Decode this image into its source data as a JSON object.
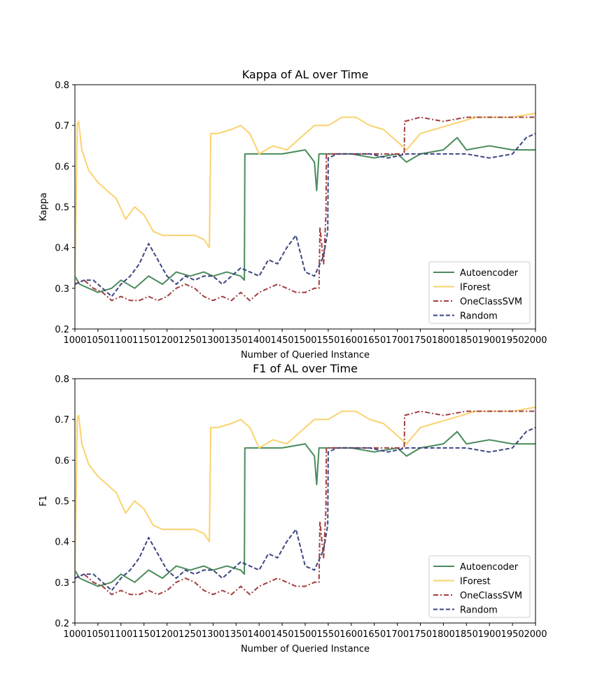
{
  "chart_data": [
    {
      "type": "line",
      "title": "Kappa of AL over Time",
      "xlabel": "Number of Queried Instance",
      "ylabel": "Kappa",
      "xlim": [
        1000,
        2000
      ],
      "ylim": [
        0.2,
        0.8
      ],
      "xticks": [
        1000,
        1050,
        1100,
        1150,
        1200,
        1250,
        1300,
        1350,
        1400,
        1450,
        1500,
        1550,
        1600,
        1650,
        1700,
        1750,
        1800,
        1850,
        1900,
        1950,
        2000
      ],
      "yticks": [
        "0.2",
        "0.3",
        "0.4",
        "0.5",
        "0.6",
        "0.7",
        "0.8"
      ],
      "legend_position": "lower right",
      "series": [
        {
          "name": "Autoencoder",
          "color": "#4a8b5c",
          "dash": "solid",
          "x": [
            1000,
            1010,
            1030,
            1050,
            1080,
            1100,
            1130,
            1160,
            1190,
            1220,
            1250,
            1280,
            1300,
            1330,
            1360,
            1368,
            1369,
            1400,
            1450,
            1500,
            1520,
            1525,
            1530,
            1560,
            1600,
            1650,
            1700,
            1720,
            1750,
            1800,
            1830,
            1850,
            1900,
            1950,
            2000
          ],
          "y": [
            0.33,
            0.31,
            0.3,
            0.29,
            0.3,
            0.32,
            0.3,
            0.33,
            0.31,
            0.34,
            0.33,
            0.34,
            0.33,
            0.34,
            0.33,
            0.32,
            0.63,
            0.63,
            0.63,
            0.64,
            0.61,
            0.54,
            0.63,
            0.63,
            0.63,
            0.62,
            0.63,
            0.61,
            0.63,
            0.64,
            0.67,
            0.64,
            0.65,
            0.64,
            0.64
          ]
        },
        {
          "name": "IForest",
          "color": "#fad36e",
          "dash": "solid",
          "x": [
            1000,
            1005,
            1008,
            1015,
            1030,
            1050,
            1070,
            1090,
            1110,
            1130,
            1150,
            1170,
            1190,
            1210,
            1230,
            1260,
            1280,
            1292,
            1295,
            1310,
            1340,
            1360,
            1380,
            1400,
            1430,
            1460,
            1490,
            1520,
            1550,
            1580,
            1610,
            1640,
            1670,
            1700,
            1720,
            1750,
            1780,
            1810,
            1840,
            1870,
            1900,
            1950,
            2000
          ],
          "y": [
            0.3,
            0.7,
            0.71,
            0.64,
            0.59,
            0.56,
            0.54,
            0.52,
            0.47,
            0.5,
            0.48,
            0.44,
            0.43,
            0.43,
            0.43,
            0.43,
            0.42,
            0.4,
            0.68,
            0.68,
            0.69,
            0.7,
            0.68,
            0.63,
            0.65,
            0.64,
            0.67,
            0.7,
            0.7,
            0.72,
            0.72,
            0.7,
            0.69,
            0.66,
            0.64,
            0.68,
            0.69,
            0.7,
            0.71,
            0.72,
            0.72,
            0.72,
            0.73
          ]
        },
        {
          "name": "OneClassSVM",
          "color": "#a13d3d",
          "dash": "dashdot",
          "x": [
            1000,
            1020,
            1040,
            1060,
            1080,
            1100,
            1120,
            1140,
            1160,
            1180,
            1200,
            1220,
            1240,
            1260,
            1280,
            1300,
            1320,
            1340,
            1360,
            1380,
            1400,
            1420,
            1440,
            1460,
            1480,
            1500,
            1520,
            1530,
            1532,
            1540,
            1545,
            1546,
            1570,
            1600,
            1640,
            1680,
            1700,
            1715,
            1716,
            1750,
            1800,
            1850,
            1900,
            1950,
            2000
          ],
          "y": [
            0.31,
            0.32,
            0.3,
            0.29,
            0.27,
            0.28,
            0.27,
            0.27,
            0.28,
            0.27,
            0.28,
            0.3,
            0.31,
            0.3,
            0.28,
            0.27,
            0.28,
            0.27,
            0.29,
            0.27,
            0.29,
            0.3,
            0.31,
            0.3,
            0.29,
            0.29,
            0.3,
            0.3,
            0.45,
            0.36,
            0.48,
            0.63,
            0.63,
            0.63,
            0.63,
            0.63,
            0.63,
            0.63,
            0.71,
            0.72,
            0.71,
            0.72,
            0.72,
            0.72,
            0.72
          ]
        },
        {
          "name": "Random",
          "color": "#3c4580",
          "dash": "dashed",
          "x": [
            1000,
            1020,
            1040,
            1060,
            1080,
            1100,
            1120,
            1140,
            1160,
            1180,
            1200,
            1220,
            1240,
            1260,
            1280,
            1300,
            1320,
            1340,
            1360,
            1380,
            1400,
            1420,
            1440,
            1460,
            1480,
            1500,
            1520,
            1540,
            1549,
            1550,
            1570,
            1600,
            1640,
            1680,
            1720,
            1760,
            1800,
            1850,
            1900,
            1950,
            1980,
            2000
          ],
          "y": [
            0.31,
            0.32,
            0.32,
            0.3,
            0.28,
            0.31,
            0.33,
            0.36,
            0.41,
            0.37,
            0.33,
            0.31,
            0.33,
            0.32,
            0.33,
            0.33,
            0.31,
            0.33,
            0.35,
            0.34,
            0.33,
            0.37,
            0.36,
            0.4,
            0.43,
            0.34,
            0.33,
            0.38,
            0.44,
            0.62,
            0.63,
            0.63,
            0.63,
            0.62,
            0.63,
            0.63,
            0.63,
            0.63,
            0.62,
            0.63,
            0.67,
            0.68
          ]
        }
      ]
    },
    {
      "type": "line",
      "title": "F1 of AL over Time",
      "xlabel": "Number of Queried Instance",
      "ylabel": "F1",
      "xlim": [
        1000,
        2000
      ],
      "ylim": [
        0.2,
        0.8
      ],
      "xticks": [
        1000,
        1050,
        1100,
        1150,
        1200,
        1250,
        1300,
        1350,
        1400,
        1450,
        1500,
        1550,
        1600,
        1650,
        1700,
        1750,
        1800,
        1850,
        1900,
        1950,
        2000
      ],
      "yticks": [
        "0.2",
        "0.3",
        "0.4",
        "0.5",
        "0.6",
        "0.7",
        "0.8"
      ],
      "legend_position": "lower right",
      "series": [
        {
          "name": "Autoencoder",
          "color": "#4a8b5c",
          "dash": "solid",
          "x": [
            1000,
            1010,
            1030,
            1050,
            1080,
            1100,
            1130,
            1160,
            1190,
            1220,
            1250,
            1280,
            1300,
            1330,
            1360,
            1368,
            1369,
            1400,
            1450,
            1500,
            1520,
            1525,
            1530,
            1560,
            1600,
            1650,
            1700,
            1720,
            1750,
            1800,
            1830,
            1850,
            1900,
            1950,
            2000
          ],
          "y": [
            0.33,
            0.31,
            0.3,
            0.29,
            0.3,
            0.32,
            0.3,
            0.33,
            0.31,
            0.34,
            0.33,
            0.34,
            0.33,
            0.34,
            0.33,
            0.32,
            0.63,
            0.63,
            0.63,
            0.64,
            0.61,
            0.54,
            0.63,
            0.63,
            0.63,
            0.62,
            0.63,
            0.61,
            0.63,
            0.64,
            0.67,
            0.64,
            0.65,
            0.64,
            0.64
          ]
        },
        {
          "name": "IForest",
          "color": "#fad36e",
          "dash": "solid",
          "x": [
            1000,
            1005,
            1008,
            1015,
            1030,
            1050,
            1070,
            1090,
            1110,
            1130,
            1150,
            1170,
            1190,
            1210,
            1230,
            1260,
            1280,
            1292,
            1295,
            1310,
            1340,
            1360,
            1380,
            1400,
            1430,
            1460,
            1490,
            1520,
            1550,
            1580,
            1610,
            1640,
            1670,
            1700,
            1720,
            1750,
            1780,
            1810,
            1840,
            1870,
            1900,
            1950,
            2000
          ],
          "y": [
            0.3,
            0.7,
            0.71,
            0.64,
            0.59,
            0.56,
            0.54,
            0.52,
            0.47,
            0.5,
            0.48,
            0.44,
            0.43,
            0.43,
            0.43,
            0.43,
            0.42,
            0.4,
            0.68,
            0.68,
            0.69,
            0.7,
            0.68,
            0.63,
            0.65,
            0.64,
            0.67,
            0.7,
            0.7,
            0.72,
            0.72,
            0.7,
            0.69,
            0.66,
            0.64,
            0.68,
            0.69,
            0.7,
            0.71,
            0.72,
            0.72,
            0.72,
            0.73
          ]
        },
        {
          "name": "OneClassSVM",
          "color": "#a13d3d",
          "dash": "dashdot",
          "x": [
            1000,
            1020,
            1040,
            1060,
            1080,
            1100,
            1120,
            1140,
            1160,
            1180,
            1200,
            1220,
            1240,
            1260,
            1280,
            1300,
            1320,
            1340,
            1360,
            1380,
            1400,
            1420,
            1440,
            1460,
            1480,
            1500,
            1520,
            1530,
            1532,
            1540,
            1545,
            1546,
            1570,
            1600,
            1640,
            1680,
            1700,
            1715,
            1716,
            1750,
            1800,
            1850,
            1900,
            1950,
            2000
          ],
          "y": [
            0.31,
            0.32,
            0.3,
            0.29,
            0.27,
            0.28,
            0.27,
            0.27,
            0.28,
            0.27,
            0.28,
            0.3,
            0.31,
            0.3,
            0.28,
            0.27,
            0.28,
            0.27,
            0.29,
            0.27,
            0.29,
            0.3,
            0.31,
            0.3,
            0.29,
            0.29,
            0.3,
            0.3,
            0.45,
            0.36,
            0.48,
            0.63,
            0.63,
            0.63,
            0.63,
            0.63,
            0.63,
            0.63,
            0.71,
            0.72,
            0.71,
            0.72,
            0.72,
            0.72,
            0.72
          ]
        },
        {
          "name": "Random",
          "color": "#3c4580",
          "dash": "dashed",
          "x": [
            1000,
            1020,
            1040,
            1060,
            1080,
            1100,
            1120,
            1140,
            1160,
            1180,
            1200,
            1220,
            1240,
            1260,
            1280,
            1300,
            1320,
            1340,
            1360,
            1380,
            1400,
            1420,
            1440,
            1460,
            1480,
            1500,
            1520,
            1540,
            1549,
            1550,
            1570,
            1600,
            1640,
            1680,
            1720,
            1760,
            1800,
            1850,
            1900,
            1950,
            1980,
            2000
          ],
          "y": [
            0.31,
            0.32,
            0.32,
            0.3,
            0.28,
            0.31,
            0.33,
            0.36,
            0.41,
            0.37,
            0.33,
            0.31,
            0.33,
            0.32,
            0.33,
            0.33,
            0.31,
            0.33,
            0.35,
            0.34,
            0.33,
            0.37,
            0.36,
            0.4,
            0.43,
            0.34,
            0.33,
            0.38,
            0.44,
            0.62,
            0.63,
            0.63,
            0.63,
            0.62,
            0.63,
            0.63,
            0.63,
            0.63,
            0.62,
            0.63,
            0.67,
            0.68
          ]
        }
      ]
    }
  ]
}
